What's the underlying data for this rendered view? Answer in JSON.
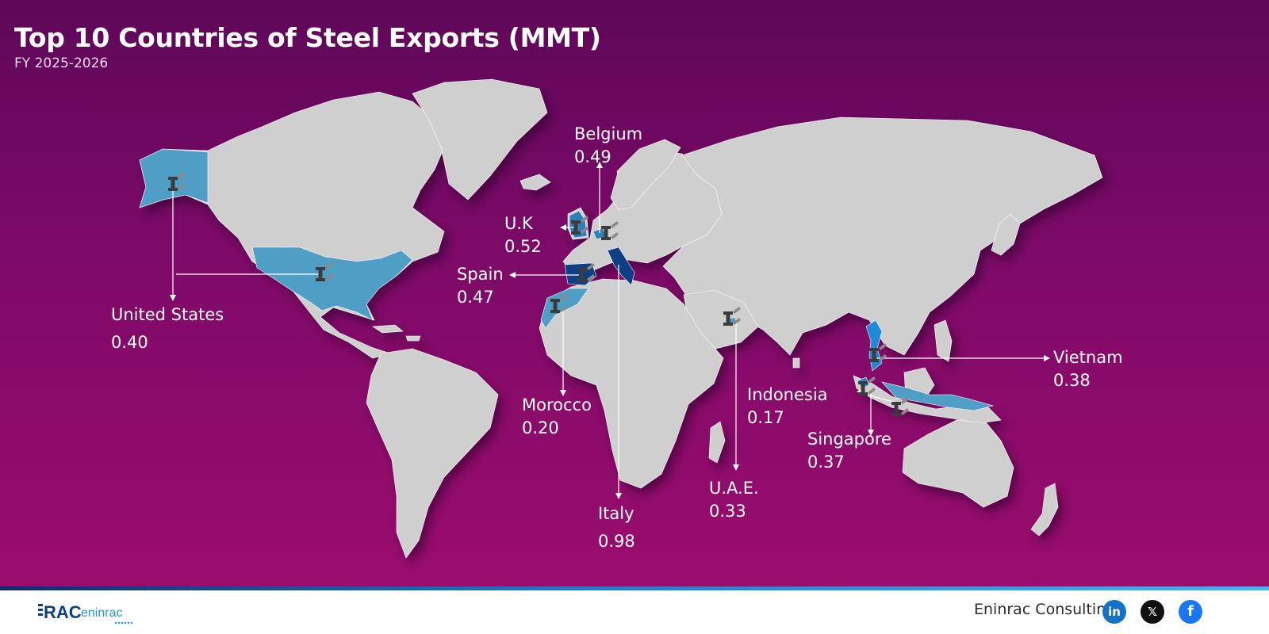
{
  "header": {
    "title": "Top 10 Countries of Steel Exports (MMT)",
    "subtitle": "FY 2025-2026"
  },
  "markers": [
    {
      "id": "united-states",
      "name": "United States",
      "value": "0.40"
    },
    {
      "id": "uk",
      "name": "U.K",
      "value": "0.52"
    },
    {
      "id": "belgium",
      "name": "Belgium",
      "value": "0.49"
    },
    {
      "id": "spain",
      "name": "Spain",
      "value": "0.47"
    },
    {
      "id": "morocco",
      "name": "Morocco",
      "value": "0.20"
    },
    {
      "id": "italy",
      "name": "Italy",
      "value": "0.98"
    },
    {
      "id": "uae",
      "name": "U.A.E.",
      "value": "0.33"
    },
    {
      "id": "vietnam",
      "name": "Vietnam",
      "value": "0.38"
    },
    {
      "id": "indonesia",
      "name": "Indonesia",
      "value": "0.17"
    },
    {
      "id": "singapore",
      "name": "Singapore",
      "value": "0.37"
    }
  ],
  "colors": {
    "background_top": "#5e0758",
    "background_bottom": "#9a0c6d",
    "land": "#cfcfcf",
    "highlight_light": "#4f9ec6",
    "highlight_dark": "#0d3f86",
    "highlight_bright": "#1e8ad6",
    "leader_line": "#ffffff"
  },
  "footer": {
    "logo_text": "RAC",
    "logo_subtext": "eninrac",
    "brand": "Eninrac Consulting",
    "social_icons": [
      "linkedin-icon",
      "x-icon",
      "facebook-icon"
    ],
    "linkedin_glyph": "in",
    "x_glyph": "𝕏",
    "facebook_glyph": "f"
  }
}
